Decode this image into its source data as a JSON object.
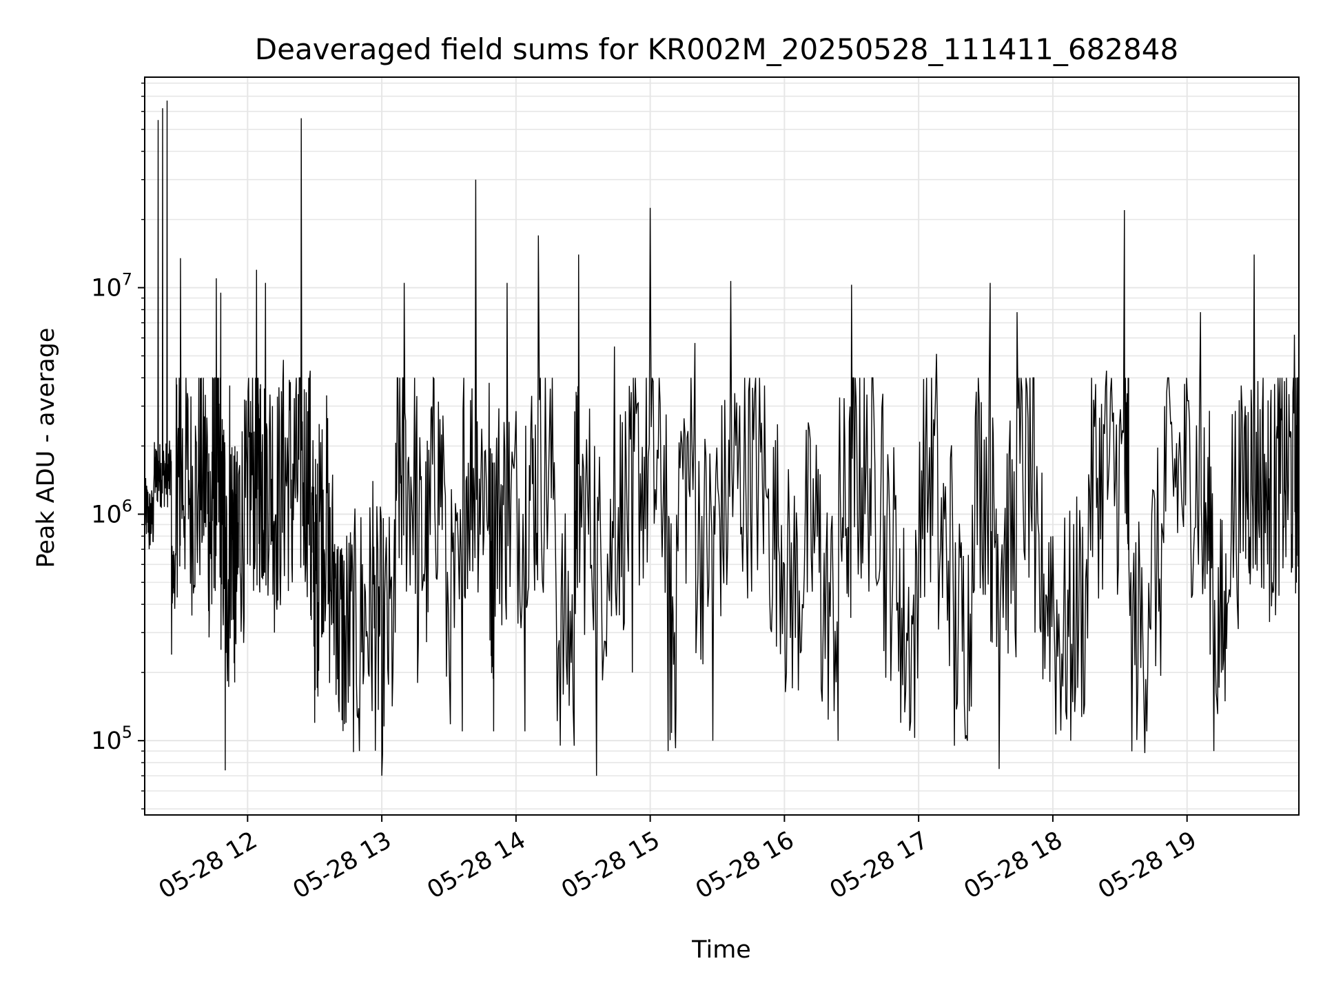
{
  "chart_data": {
    "type": "line",
    "title": "Deaveraged field sums for KR002M_20250528_111411_682848",
    "xlabel": "Time",
    "ylabel": "Peak ADU - average",
    "yscale": "log",
    "ylim": [
      47000,
      85000000
    ],
    "xlim": [
      "2025-05-28 11:14",
      "2025-05-28 19:50"
    ],
    "grid": true,
    "line_color": "#000000",
    "grid_color": "#e6e6e6",
    "x_ticks": [
      "05-28 12",
      "05-28 13",
      "05-28 14",
      "05-28 15",
      "05-28 16",
      "05-28 17",
      "05-28 18",
      "05-28 19"
    ],
    "y_ticks": [
      {
        "value": 100000,
        "base": "10",
        "exp": "5"
      },
      {
        "value": 1000000,
        "base": "10",
        "exp": "6"
      },
      {
        "value": 10000000,
        "base": "10",
        "exp": "7"
      }
    ],
    "series": [
      {
        "x": [
          "2025-05-28 11:14",
          "2025-05-28 11:16",
          "2025-05-28 11:18",
          "2025-05-28 11:20",
          "2025-05-28 11:22",
          "2025-05-28 11:24",
          "2025-05-28 11:26",
          "2025-05-28 11:28",
          "2025-05-28 11:30",
          "2025-05-28 11:34",
          "2025-05-28 11:38",
          "2025-05-28 11:42",
          "2025-05-28 11:44",
          "2025-05-28 11:46",
          "2025-05-28 11:48",
          "2025-05-28 11:50",
          "2025-05-28 11:52",
          "2025-05-28 11:54",
          "2025-05-28 11:56",
          "2025-05-28 12:00",
          "2025-05-28 12:04",
          "2025-05-28 12:06",
          "2025-05-28 12:08",
          "2025-05-28 12:12",
          "2025-05-28 12:16",
          "2025-05-28 12:20",
          "2025-05-28 12:24",
          "2025-05-28 12:28",
          "2025-05-28 12:30",
          "2025-05-28 12:32",
          "2025-05-28 12:36",
          "2025-05-28 12:40",
          "2025-05-28 12:44",
          "2025-05-28 12:50",
          "2025-05-28 12:56",
          "2025-05-28 13:00",
          "2025-05-28 13:06",
          "2025-05-28 13:10",
          "2025-05-28 13:16",
          "2025-05-28 13:22",
          "2025-05-28 13:28",
          "2025-05-28 13:36",
          "2025-05-28 13:42",
          "2025-05-28 13:48",
          "2025-05-28 13:50",
          "2025-05-28 13:56",
          "2025-05-28 14:04",
          "2025-05-28 14:10",
          "2025-05-28 14:18",
          "2025-05-28 14:26",
          "2025-05-28 14:28",
          "2025-05-28 14:36",
          "2025-05-28 14:44",
          "2025-05-28 14:52",
          "2025-05-28 15:00",
          "2025-05-28 15:08",
          "2025-05-28 15:12",
          "2025-05-28 15:20",
          "2025-05-28 15:28",
          "2025-05-28 15:36",
          "2025-05-28 15:44",
          "2025-05-28 15:52",
          "2025-05-28 16:00",
          "2025-05-28 16:08",
          "2025-05-28 16:16",
          "2025-05-28 16:24",
          "2025-05-28 16:30",
          "2025-05-28 16:36",
          "2025-05-28 16:44",
          "2025-05-28 16:52",
          "2025-05-28 17:00",
          "2025-05-28 17:08",
          "2025-05-28 17:16",
          "2025-05-28 17:24",
          "2025-05-28 17:32",
          "2025-05-28 17:36",
          "2025-05-28 17:44",
          "2025-05-28 17:52",
          "2025-05-28 18:00",
          "2025-05-28 18:08",
          "2025-05-28 18:16",
          "2025-05-28 18:24",
          "2025-05-28 18:32",
          "2025-05-28 18:34",
          "2025-05-28 18:42",
          "2025-05-28 18:50",
          "2025-05-28 18:58",
          "2025-05-28 19:06",
          "2025-05-28 19:12",
          "2025-05-28 19:18",
          "2025-05-28 19:26",
          "2025-05-28 19:30",
          "2025-05-28 19:36",
          "2025-05-28 19:40",
          "2025-05-28 19:44",
          "2025-05-28 19:48",
          "2025-05-28 19:50"
        ],
        "y": [
          1500000,
          700000,
          1300000,
          55000000,
          62000000,
          67000000,
          240000,
          1200000,
          13500000,
          1100000,
          1400000,
          2200000,
          400000,
          11000000,
          9500000,
          74000,
          3700000,
          220000,
          1500000,
          600000,
          12000000,
          1100000,
          10500000,
          300000,
          4800000,
          500000,
          56000000,
          4300000,
          120000,
          2500000,
          400000,
          700000,
          120000,
          90000,
          1400000,
          70000,
          300000,
          10500000,
          180000,
          2900000,
          1400000,
          110000,
          30000000,
          3800000,
          110000,
          10500000,
          110000,
          17000000,
          400000,
          95000,
          14000000,
          70000,
          5500000,
          200000,
          22500000,
          90000,
          800000,
          5700000,
          100000,
          10700000,
          3500000,
          1200000,
          600000,
          400000,
          1500000,
          100000,
          10300000,
          1000000,
          3400000,
          120000,
          600000,
          5100000,
          95000,
          1100000,
          10500000,
          75000,
          7800000,
          300000,
          800000,
          100000,
          1500000,
          4300000,
          22000000,
          600000,
          110000,
          3000000,
          1000000,
          7800000,
          90000,
          400000,
          3000000,
          14000000,
          600000,
          2200000,
          1200000,
          6200000,
          1500000
        ]
      }
    ]
  }
}
